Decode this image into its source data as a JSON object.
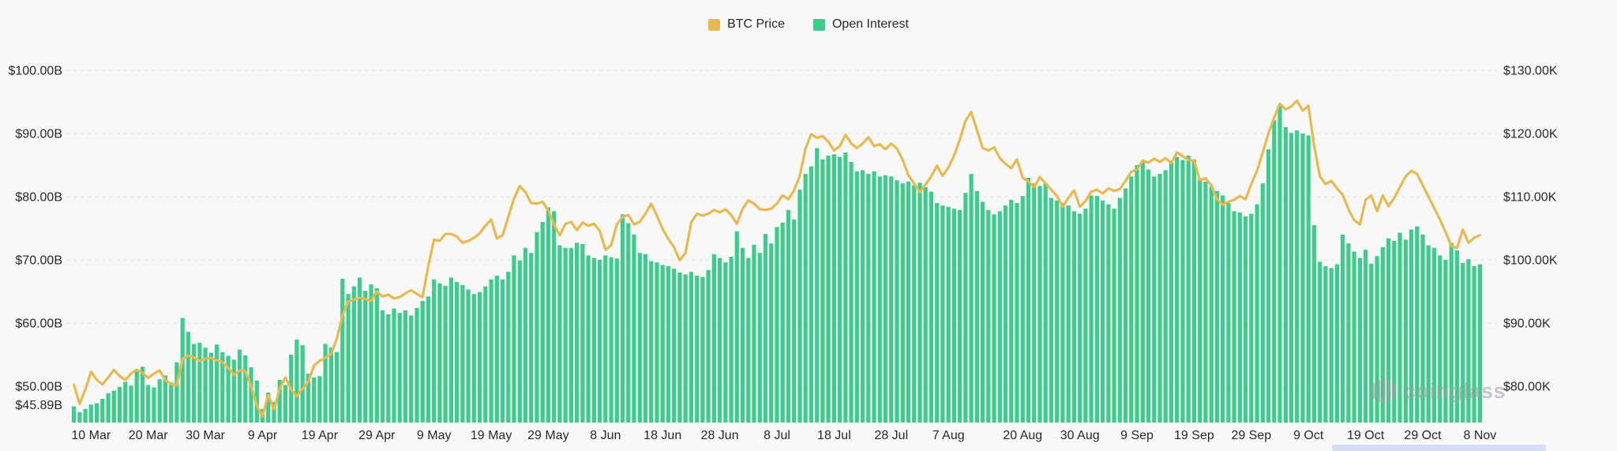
{
  "legend": [
    {
      "label": "BTC Price",
      "color": "#E8B94F"
    },
    {
      "label": "Open Interest",
      "color": "#3ECC8C"
    }
  ],
  "watermark": {
    "text": "coinglass"
  },
  "colors": {
    "background": "#f8f8f9",
    "grid": "#e6e6e8",
    "axis_text": "#26282b",
    "bar": "#3ECC8C",
    "line": "#E8B94F",
    "scrollbar_thumb": "#d4ddf6",
    "watermark": "#9b9da3"
  },
  "chart_data": {
    "type": "mixed",
    "n_points": 247,
    "grid": true,
    "legend_position": "top-center",
    "left_axis": {
      "unit": "USD billions",
      "values": [
        100,
        90,
        80,
        70,
        60,
        50
      ],
      "labels": [
        "$100.00B",
        "$90.00B",
        "$80.00B",
        "$70.00B",
        "$60.00B",
        "$50.00B"
      ],
      "min": {
        "value": 45.89,
        "label": "$45.89B"
      }
    },
    "right_axis": {
      "unit": "USD thousands",
      "values": [
        130,
        120,
        110,
        100,
        90,
        80
      ],
      "labels": [
        "$130.00K",
        "$120.00K",
        "$110.00K",
        "$100.00K",
        "$90.00K",
        "$80.00K"
      ]
    },
    "x_tick_labels": [
      "10 Mar",
      "20 Mar",
      "30 Mar",
      "9 Apr",
      "19 Apr",
      "29 Apr",
      "9 May",
      "19 May",
      "29 May",
      "8 Jun",
      "18 Jun",
      "28 Jun",
      "8 Jul",
      "18 Jul",
      "28 Jul",
      "7 Aug",
      "20 Aug",
      "30 Aug",
      "9 Sep",
      "19 Sep",
      "29 Sep",
      "9 Oct",
      "19 Oct",
      "29 Oct",
      "8 Nov"
    ],
    "x_tick_indices": [
      3,
      13,
      23,
      33,
      43,
      53,
      63,
      73,
      83,
      93,
      103,
      113,
      123,
      133,
      143,
      153,
      166,
      176,
      186,
      196,
      206,
      216,
      226,
      236,
      246
    ],
    "series": [
      {
        "name": "Open Interest",
        "type": "bar",
        "axis": "left",
        "color": "#3ECC8C",
        "values": [
          46.8,
          45.9,
          46.4,
          47.1,
          47.3,
          48.0,
          48.9,
          49.3,
          49.9,
          50.7,
          50.1,
          52.5,
          53.1,
          50.2,
          49.8,
          51.1,
          51.7,
          50.6,
          53.8,
          60.8,
          58.6,
          56.7,
          56.9,
          56.1,
          55.3,
          56.6,
          55.4,
          54.8,
          54.2,
          55.8,
          54.9,
          53.0,
          50.9,
          46.4,
          49.0,
          47.5,
          51.0,
          50.2,
          55.0,
          57.4,
          56.5,
          52.0,
          51.4,
          51.6,
          56.7,
          56.1,
          55.4,
          67.0,
          64.6,
          65.8,
          67.2,
          65.1,
          66.1,
          65.5,
          62.0,
          61.4,
          62.3,
          61.6,
          62.0,
          61.2,
          62.4,
          63.5,
          64.2,
          66.9,
          66.3,
          65.9,
          67.2,
          66.5,
          66.0,
          65.3,
          64.6,
          64.9,
          65.8,
          66.9,
          67.5,
          66.9,
          68.1,
          70.7,
          69.9,
          71.9,
          71.1,
          74.4,
          76.0,
          78.3,
          77.7,
          72.3,
          71.9,
          71.9,
          72.7,
          72.5,
          70.7,
          70.3,
          70.0,
          70.7,
          70.4,
          70.2,
          77.2,
          75.8,
          74.0,
          71.1,
          70.9,
          69.8,
          69.6,
          69.2,
          69.0,
          68.6,
          68.0,
          67.7,
          68.1,
          67.5,
          67.3,
          68.4,
          70.9,
          70.3,
          69.6,
          70.5,
          74.5,
          71.9,
          70.3,
          72.4,
          71.1,
          74.1,
          72.6,
          75.2,
          75.9,
          77.9,
          76.4,
          81.1,
          83.6,
          84.8,
          87.7,
          85.9,
          86.5,
          86.7,
          86.3,
          87.0,
          85.5,
          84.0,
          84.2,
          83.6,
          84.0,
          83.2,
          83.4,
          83.2,
          82.6,
          82.1,
          82.4,
          81.8,
          82.2,
          81.5,
          80.8,
          79.0,
          78.6,
          78.4,
          78.1,
          77.9,
          80.6,
          83.6,
          80.9,
          79.2,
          77.9,
          77.2,
          77.7,
          78.6,
          79.5,
          79.0,
          80.1,
          83.0,
          82.1,
          81.7,
          82.1,
          79.8,
          79.4,
          79.0,
          78.6,
          77.7,
          77.3,
          78.1,
          80.2,
          80.1,
          79.4,
          78.8,
          78.1,
          79.8,
          81.3,
          83.2,
          85.0,
          85.5,
          84.3,
          83.2,
          83.6,
          84.2,
          85.5,
          86.3,
          85.8,
          86.5,
          85.9,
          82.8,
          82.4,
          81.6,
          80.9,
          80.2,
          79.0,
          77.7,
          77.5,
          76.9,
          77.3,
          78.8,
          82.1,
          87.5,
          92.1,
          94.5,
          91.0,
          90.1,
          90.5,
          90.0,
          89.7,
          75.5,
          69.7,
          69.0,
          68.7,
          69.3,
          74.0,
          72.6,
          71.3,
          70.3,
          71.6,
          69.4,
          70.6,
          72.0,
          73.4,
          73.0,
          74.3,
          73.2,
          74.8,
          75.3,
          74.0,
          72.3,
          71.9,
          70.7,
          70.0,
          72.7,
          71.5,
          69.5,
          70.1,
          69.0,
          69.3
        ]
      },
      {
        "name": "BTC Price",
        "type": "line",
        "axis": "right",
        "color": "#E8B94F",
        "values": [
          80.2,
          77.2,
          79.5,
          82.3,
          81.0,
          80.3,
          81.4,
          82.6,
          81.6,
          81.0,
          82.0,
          82.6,
          82.1,
          81.3,
          82.0,
          82.5,
          81.0,
          80.3,
          80.2,
          84.3,
          84.8,
          84.6,
          84.0,
          84.3,
          84.5,
          84.1,
          83.8,
          82.9,
          81.8,
          82.5,
          82.4,
          80.0,
          76.9,
          75.2,
          78.6,
          76.3,
          79.6,
          81.4,
          79.5,
          78.4,
          79.6,
          80.7,
          83.3,
          84.0,
          84.5,
          85.1,
          87.5,
          91.2,
          93.4,
          93.7,
          94.0,
          93.8,
          93.5,
          95.0,
          94.2,
          94.5,
          93.9,
          94.1,
          94.7,
          95.2,
          94.6,
          94.1,
          99.0,
          103.2,
          103.0,
          104.1,
          104.1,
          103.7,
          102.7,
          103.0,
          103.5,
          104.2,
          105.4,
          106.4,
          103.4,
          103.9,
          106.8,
          109.7,
          111.7,
          110.7,
          109.0,
          108.9,
          109.2,
          107.8,
          105.6,
          103.9,
          105.7,
          106.0,
          104.7,
          105.9,
          105.4,
          105.7,
          104.6,
          101.6,
          102.3,
          105.6,
          106.8,
          107.1,
          105.6,
          106.0,
          107.3,
          108.9,
          107.0,
          104.9,
          103.3,
          102.0,
          99.9,
          101.1,
          105.9,
          107.3,
          107.0,
          107.3,
          107.9,
          107.5,
          108.0,
          107.1,
          105.7,
          108.1,
          109.4,
          108.9,
          108.0,
          107.9,
          108.1,
          108.9,
          110.2,
          109.6,
          111.0,
          113.3,
          117.6,
          119.9,
          119.3,
          119.6,
          118.7,
          117.3,
          118.0,
          119.8,
          118.4,
          117.7,
          118.4,
          119.4,
          118.0,
          118.3,
          117.5,
          118.4,
          117.6,
          115.8,
          113.4,
          112.1,
          110.7,
          111.9,
          113.2,
          114.9,
          113.3,
          114.6,
          116.5,
          119.0,
          122.0,
          123.4,
          120.5,
          117.7,
          117.3,
          117.8,
          116.1,
          115.2,
          114.5,
          115.9,
          113.0,
          112.4,
          111.5,
          113.1,
          112.1,
          111.1,
          110.1,
          108.4,
          109.8,
          111.0,
          108.4,
          109.3,
          110.8,
          111.1,
          110.5,
          111.3,
          110.9,
          111.2,
          112.5,
          113.9,
          114.3,
          115.7,
          115.4,
          116.0,
          115.5,
          116.1,
          115.3,
          117.0,
          116.4,
          115.8,
          115.7,
          112.6,
          112.9,
          111.8,
          109.6,
          108.7,
          109.2,
          109.5,
          110.1,
          109.6,
          112.0,
          114.1,
          117.0,
          120.0,
          122.5,
          124.7,
          123.8,
          124.3,
          125.2,
          123.6,
          124.4,
          118.0,
          113.2,
          112.0,
          112.5,
          111.3,
          110.3,
          108.0,
          106.3,
          105.6,
          109.5,
          110.2,
          107.7,
          110.2,
          108.5,
          109.8,
          111.5,
          113.2,
          114.1,
          113.6,
          111.8,
          110.0,
          108.2,
          106.4,
          104.4,
          102.2,
          101.9,
          104.8,
          102.7,
          103.5,
          103.9
        ]
      }
    ]
  }
}
